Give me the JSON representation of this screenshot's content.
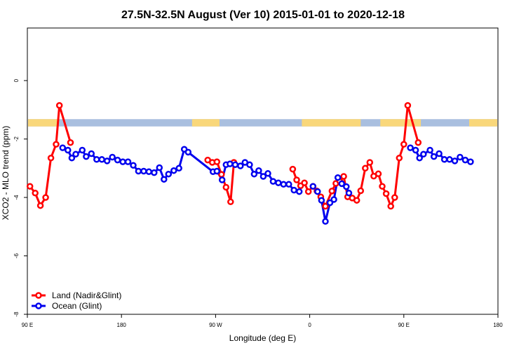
{
  "chart_data": {
    "type": "line",
    "title": "27.5N-32.5N August (Ver 10)   2015-01-01 to 2020-12-18",
    "xlabel": "Longitude (deg E)",
    "ylabel": "XCO2 - MLO trend (ppm)",
    "xlim": [
      90,
      450
    ],
    "ylim": [
      -8,
      1.8
    ],
    "x_ticks": [
      {
        "value": 90,
        "label": "90 E"
      },
      {
        "value": 162,
        "label": "180"
      },
      {
        "value": 234,
        "label": "90 W"
      },
      {
        "value": 306,
        "label": "0"
      },
      {
        "value": 378,
        "label": "90 E"
      },
      {
        "value": 450,
        "label": "180"
      }
    ],
    "y_ticks": [
      {
        "value": 0,
        "label": "0"
      },
      {
        "value": -2,
        "label": "-2"
      },
      {
        "value": -4,
        "label": "-4"
      },
      {
        "value": -6,
        "label": "-6"
      },
      {
        "value": -8,
        "label": "-8"
      }
    ],
    "grid": false,
    "legend_position": "bottom-left",
    "land_ocean_band": {
      "y_range": [
        -1.57,
        -1.32
      ],
      "ocean_color": "#a9bfdf",
      "land_color": "#f9d77a",
      "land_segments": [
        [
          90,
          113
        ],
        [
          216,
          237
        ],
        [
          300,
          345
        ],
        [
          360,
          391
        ],
        [
          428,
          450
        ]
      ]
    },
    "series": [
      {
        "name": "Land (Nadir&Glint)",
        "color": "#ff0000",
        "segments": [
          [
            [
              92,
              -3.62
            ],
            [
              96,
              -3.85
            ],
            [
              100,
              -4.28
            ],
            [
              104,
              -4.0
            ],
            [
              108,
              -2.65
            ],
            [
              112,
              -2.18
            ],
            [
              114.5,
              -0.85
            ],
            [
              123,
              -2.12
            ]
          ],
          [
            [
              228,
              -2.72
            ],
            [
              231.5,
              -2.8
            ],
            [
              235,
              -2.78
            ],
            [
              238.5,
              -3.21
            ],
            [
              242,
              -3.65
            ],
            [
              245.5,
              -4.15
            ],
            [
              248,
              -2.8
            ]
          ],
          [
            [
              293,
              -3.03
            ],
            [
              296,
              -3.4
            ],
            [
              299,
              -3.6
            ],
            [
              302,
              -3.5
            ],
            [
              305,
              -3.8
            ],
            [
              308.5,
              -3.62
            ],
            [
              311.5,
              -3.78
            ],
            [
              314.5,
              -3.98
            ],
            [
              318,
              -4.3
            ],
            [
              323,
              -3.78
            ],
            [
              326,
              -3.52
            ],
            [
              329,
              -3.45
            ],
            [
              332,
              -3.28
            ],
            [
              335,
              -3.98
            ],
            [
              338.5,
              -4.02
            ],
            [
              342,
              -4.1
            ],
            [
              345,
              -3.77
            ],
            [
              348.5,
              -3.0
            ],
            [
              352,
              -2.8
            ],
            [
              355,
              -3.27
            ],
            [
              358.5,
              -3.19
            ],
            [
              361.5,
              -3.62
            ],
            [
              364.5,
              -3.87
            ],
            [
              368,
              -4.3
            ],
            [
              371,
              -4.0
            ],
            [
              374.5,
              -2.65
            ],
            [
              378,
              -2.18
            ],
            [
              381,
              -0.85
            ],
            [
              389,
              -2.12
            ]
          ]
        ]
      },
      {
        "name": "Ocean (Glint)",
        "color": "#0000ee",
        "segments": [
          [
            [
              117,
              -2.3
            ],
            [
              121,
              -2.38
            ],
            [
              124,
              -2.65
            ],
            [
              127,
              -2.52
            ],
            [
              132,
              -2.38
            ],
            [
              135,
              -2.6
            ],
            [
              139,
              -2.5
            ],
            [
              143,
              -2.7
            ],
            [
              147,
              -2.7
            ],
            [
              151,
              -2.75
            ],
            [
              155,
              -2.62
            ],
            [
              159,
              -2.72
            ],
            [
              163,
              -2.78
            ],
            [
              167,
              -2.78
            ],
            [
              171,
              -2.9
            ],
            [
              175,
              -3.1
            ],
            [
              179,
              -3.1
            ],
            [
              183,
              -3.12
            ],
            [
              187,
              -3.15
            ],
            [
              191,
              -2.98
            ],
            [
              194.5,
              -3.38
            ],
            [
              198,
              -3.2
            ],
            [
              202,
              -3.08
            ],
            [
              206,
              -3.0
            ],
            [
              210,
              -2.35
            ],
            [
              213,
              -2.45
            ],
            [
              232,
              -3.12
            ],
            [
              235,
              -3.1
            ],
            [
              239,
              -3.4
            ],
            [
              242,
              -2.88
            ],
            [
              245,
              -2.85
            ],
            [
              249,
              -2.88
            ],
            [
              253,
              -2.92
            ],
            [
              256.5,
              -2.8
            ],
            [
              260,
              -2.88
            ],
            [
              263.5,
              -3.2
            ],
            [
              267,
              -3.08
            ],
            [
              270.5,
              -3.28
            ],
            [
              274,
              -3.18
            ],
            [
              278,
              -3.45
            ],
            [
              282,
              -3.5
            ],
            [
              286,
              -3.55
            ],
            [
              290,
              -3.55
            ],
            [
              294,
              -3.75
            ],
            [
              298,
              -3.8
            ]
          ],
          [
            [
              308.5,
              -3.62
            ],
            [
              312,
              -3.8
            ],
            [
              315,
              -4.1
            ],
            [
              318,
              -4.82
            ],
            [
              321.5,
              -4.18
            ],
            [
              324.5,
              -4.07
            ],
            [
              327.5,
              -3.32
            ],
            [
              330.5,
              -3.53
            ],
            [
              334,
              -3.63
            ],
            [
              336,
              -3.85
            ]
          ],
          [
            [
              383,
              -2.3
            ],
            [
              387,
              -2.38
            ],
            [
              390,
              -2.65
            ],
            [
              393,
              -2.52
            ],
            [
              398,
              -2.38
            ],
            [
              401,
              -2.6
            ],
            [
              405,
              -2.5
            ],
            [
              409,
              -2.7
            ],
            [
              413,
              -2.7
            ],
            [
              417,
              -2.75
            ],
            [
              421,
              -2.62
            ],
            [
              425,
              -2.72
            ],
            [
              429,
              -2.78
            ]
          ]
        ]
      }
    ]
  }
}
